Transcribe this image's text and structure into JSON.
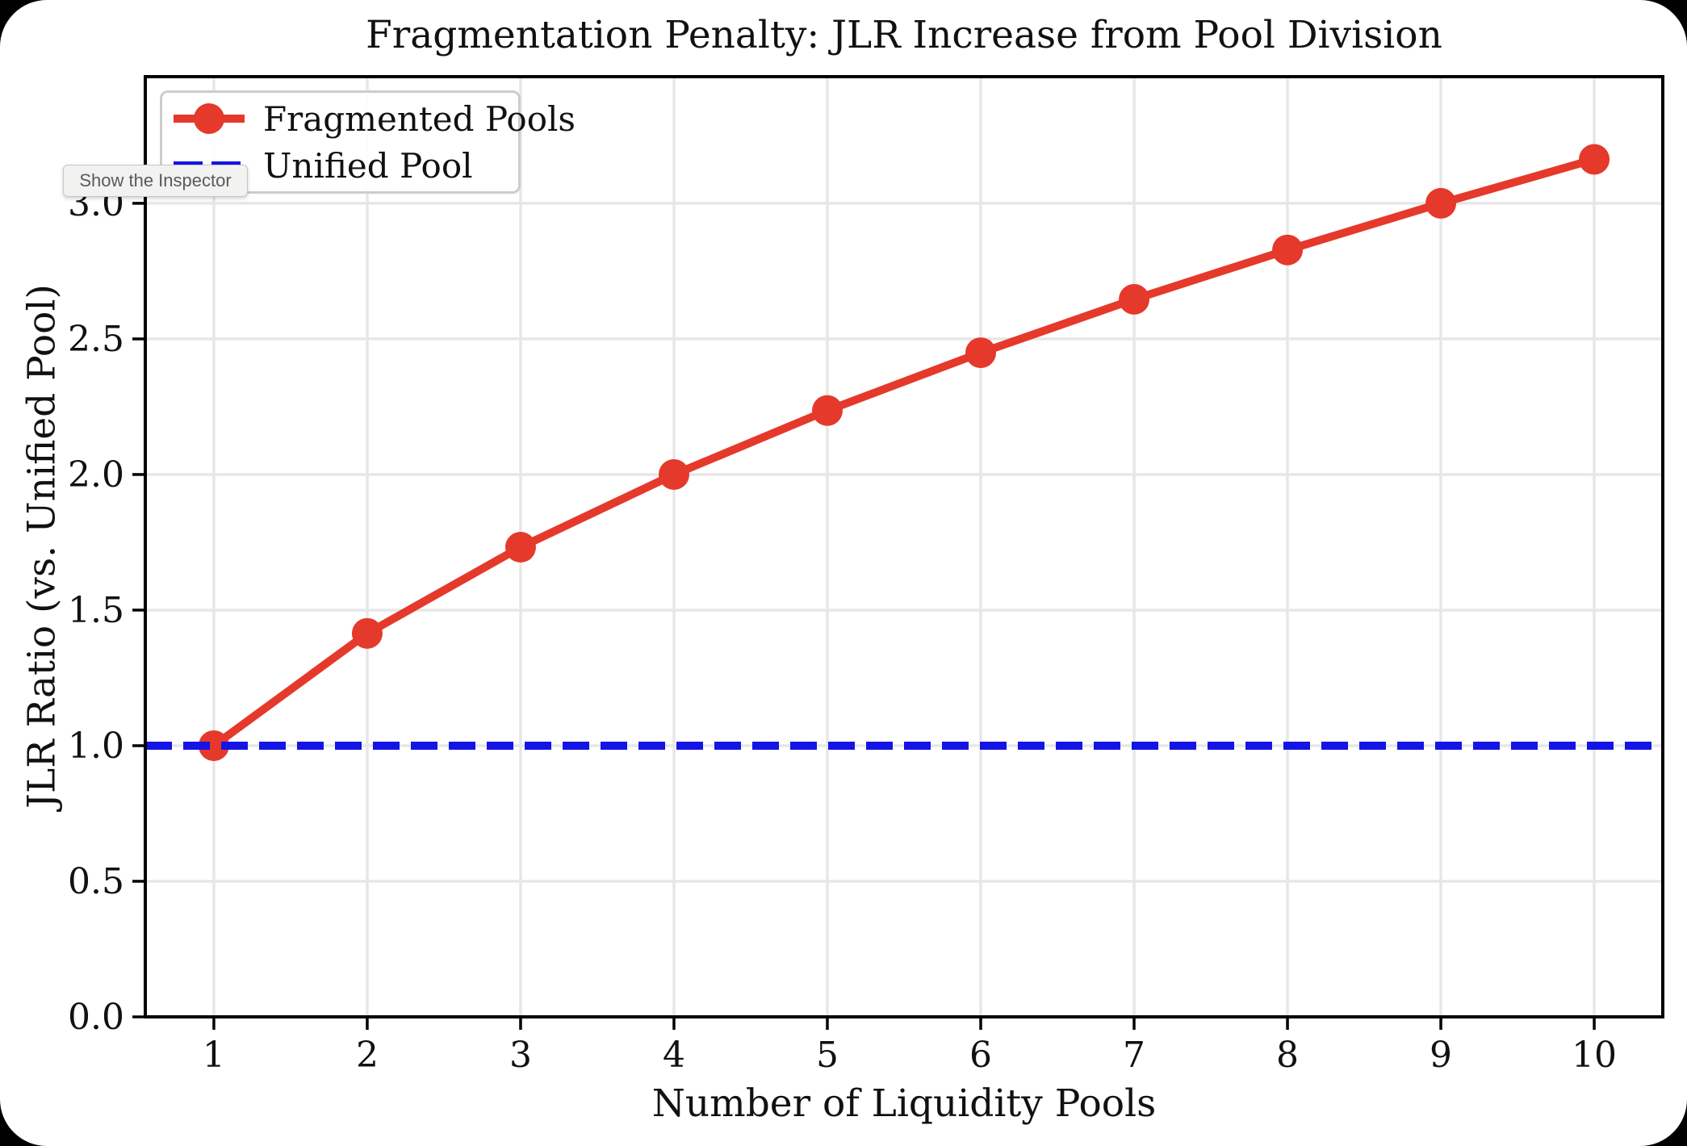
{
  "ui": {
    "tooltip": {
      "text": "Show the Inspector"
    }
  },
  "chart_data": {
    "type": "line",
    "title": "Fragmentation Penalty: JLR Increase from Pool Division",
    "xlabel": "Number of Liquidity Pools",
    "ylabel": "JLR Ratio (vs. Unified Pool)",
    "x": [
      1,
      2,
      3,
      4,
      5,
      6,
      7,
      8,
      9,
      10
    ],
    "series": [
      {
        "name": "Fragmented Pools",
        "style": "solid-line-with-markers",
        "color": "#e5392b",
        "values": [
          1.0,
          1.414,
          1.732,
          2.0,
          2.236,
          2.449,
          2.646,
          2.828,
          3.0,
          3.162
        ]
      },
      {
        "name": "Unified Pool",
        "style": "horizontal-dashed-line",
        "color": "#1414e6",
        "constant": 1.0
      }
    ],
    "xticks": {
      "values": [
        1,
        2,
        3,
        4,
        5,
        6,
        7,
        8,
        9,
        10
      ],
      "labels": [
        "1",
        "2",
        "3",
        "4",
        "5",
        "6",
        "7",
        "8",
        "9",
        "10"
      ]
    },
    "yticks": {
      "values": [
        0,
        0.5,
        1.0,
        1.5,
        2.0,
        2.5,
        3.0
      ],
      "labels": [
        "0.0",
        "0.5",
        "1.0",
        "1.5",
        "2.0",
        "2.5",
        "3.0"
      ]
    },
    "xlim": [
      0.553,
      10.447
    ],
    "ylim": [
      0,
      3.467
    ],
    "grid": true,
    "grid_color": "#e7e7e7",
    "frame_color": "#000000",
    "tick_color": "#000000",
    "legend_position": "upper-left"
  }
}
